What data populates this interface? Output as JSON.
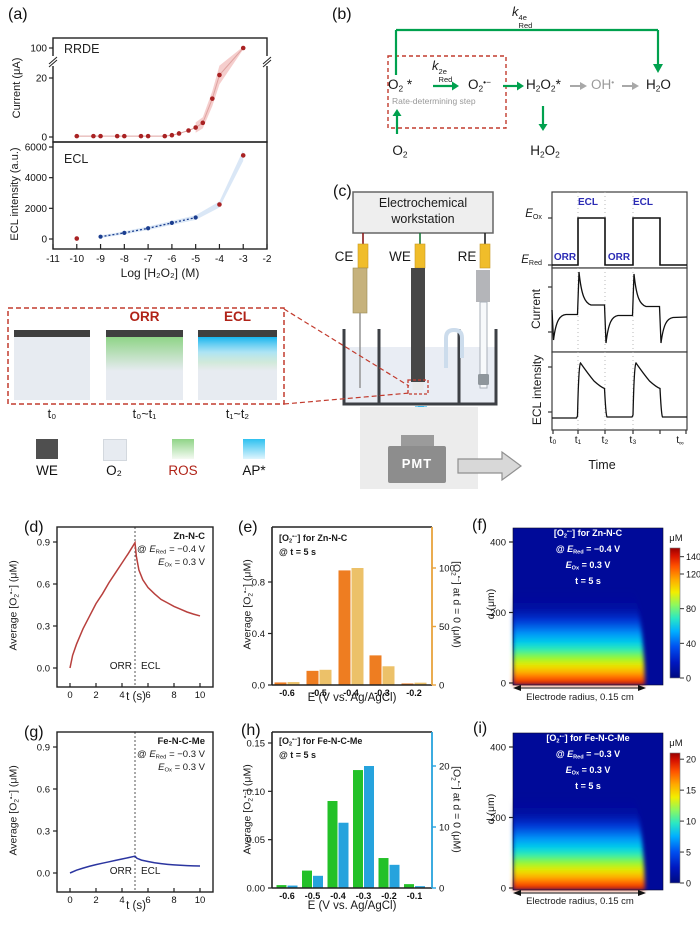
{
  "labels": {
    "a": "(a)",
    "b": "(b)",
    "c": "(c)",
    "d": "(d)",
    "e": "(e)",
    "f": "(f)",
    "g": "(g)",
    "h": "(h)",
    "i": "(i)"
  },
  "colors": {
    "accent_red": "#a92223",
    "navy": "#1b3d8f",
    "green_arrow": "#00a14e",
    "gray_arrow": "#a8a8a8",
    "dash_red": "#c23b2e",
    "blue_label": "#2b2bb5",
    "heat_bg": "#000a99",
    "glow_blue": "#58c6f3",
    "liquid": "#e9edf4",
    "electrode_dark": "#474747",
    "ce_tan": "#c6b27c",
    "re_gray": "#b4b5b9",
    "connector_yellow": "#f0bd2a",
    "orange_bar": "#ee7d21",
    "tan_bar": "#ecc169",
    "green_bar": "#23c128",
    "blue_bar": "#26a3dd",
    "right_axis_e": "#e8a33d"
  },
  "panel_b": {
    "k4e": [
      [
        "i",
        "k"
      ],
      [
        "st",
        [
          "4e",
          "Red"
        ]
      ]
    ],
    "k2e": [
      [
        "i",
        "k"
      ],
      [
        "st",
        [
          "2e",
          "Red"
        ]
      ]
    ],
    "o2_star": [
      [
        "t",
        "O"
      ],
      [
        "b",
        "2"
      ],
      [
        "t",
        " *"
      ]
    ],
    "o2_rad": [
      [
        "t",
        "O"
      ],
      [
        "b",
        "2"
      ],
      [
        "p",
        "•−"
      ]
    ],
    "h2o2_star": [
      [
        "t",
        "H"
      ],
      [
        "b",
        "2"
      ],
      [
        "t",
        "O"
      ],
      [
        "b",
        "2"
      ],
      [
        "t",
        "*"
      ]
    ],
    "oh_rad": [
      [
        "t",
        "OH"
      ],
      [
        "p",
        "•"
      ]
    ],
    "h2o": [
      [
        "t",
        "H"
      ],
      [
        "b",
        "2"
      ],
      [
        "t",
        "O"
      ]
    ],
    "o2": [
      [
        "t",
        "O"
      ],
      [
        "b",
        "2"
      ]
    ],
    "h2o2": [
      [
        "t",
        "H"
      ],
      [
        "b",
        "2"
      ],
      [
        "t",
        "O"
      ],
      [
        "b",
        "2"
      ]
    ],
    "rate_step": "Rate-determining step"
  },
  "panel_c": {
    "workstation_line1": "Electrochemical",
    "workstation_line2": "workstation",
    "ce": "CE",
    "we": "WE",
    "re": "RE",
    "pmt": "PMT",
    "eox": [
      [
        "i",
        "E"
      ],
      [
        "b",
        "Ox"
      ]
    ],
    "ered": [
      [
        "i",
        "E"
      ],
      [
        "b",
        "Red"
      ]
    ],
    "ecl1": "ECL",
    "ecl2": "ECL",
    "orr1": "ORR",
    "orr2": "ORR",
    "current_label": "Current",
    "ecl_intensity_label": "ECL intensity",
    "time_label": "Time",
    "t0": "t₀",
    "t1": "t₁",
    "t2": "t₂",
    "t3": "t₃",
    "t_inf": [
      [
        "t",
        "t"
      ],
      [
        "b",
        "∞"
      ]
    ]
  },
  "inset": {
    "orr": "ORR",
    "ecl": "ECL",
    "t0": "t₀",
    "t01": "t₀~t₁",
    "t12": "t₁~t₂",
    "legend": [
      {
        "label": "WE",
        "type": "solid",
        "colors": [
          "#4f4f4f"
        ],
        "label_color": "#111111"
      },
      {
        "label": "O₂",
        "type": "solid",
        "colors": [
          "#e7ebf1"
        ],
        "label_color": "#111111"
      },
      {
        "label": "ROS",
        "type": "gradient",
        "colors": [
          "#8fd487",
          "#f4faf2"
        ],
        "label_color": "#b02318"
      },
      {
        "label": "AP*",
        "type": "gradient",
        "colors": [
          "#2ec1f0",
          "#dff5fd"
        ],
        "label_color": "#111111"
      }
    ]
  },
  "chart_data": {
    "panel_a": {
      "type": "scatter",
      "xlabel": "Log [H₂O₂] (M)",
      "xticks": [
        -11,
        -10,
        -9,
        -8,
        -7,
        -6,
        -5,
        -4,
        -3,
        -2
      ],
      "top": {
        "label": "RRDE",
        "ylabel": "Current (μA)",
        "yticks": [
          0,
          20,
          100
        ],
        "axis_break_between": [
          20,
          100
        ],
        "x": [
          -10,
          -9.3,
          -9,
          -8.3,
          -8,
          -7.3,
          -7,
          -6.3,
          -6,
          -5.7,
          -5.3,
          -5,
          -4.7,
          -4.3,
          -4,
          -3
        ],
        "y": [
          0.3,
          0.3,
          0.3,
          0.3,
          0.3,
          0.3,
          0.3,
          0.3,
          0.6,
          1.2,
          2.2,
          3.2,
          4.8,
          13,
          21,
          100
        ],
        "point_color": "#a92223",
        "band_color": "#f3c6c4"
      },
      "bottom": {
        "label": "ECL",
        "ylabel": "ECL intensity (a.u.)",
        "yticks": [
          0,
          2000,
          4000,
          6000
        ],
        "red_x": [
          -10,
          -4,
          -3
        ],
        "red_y": [
          30,
          2250,
          5450
        ],
        "blue_x": [
          -9,
          -8,
          -7,
          -6,
          -5
        ],
        "blue_y": [
          150,
          400,
          700,
          1050,
          1400
        ],
        "red_color": "#a92223",
        "blue_color": "#1b3d8f",
        "band_color": "#d3e3f4"
      }
    },
    "panel_d": {
      "type": "line",
      "name": "Zn-N-C",
      "cond1": [
        [
          "t",
          "@ "
        ],
        [
          "i",
          "E"
        ],
        [
          "b",
          "Red"
        ],
        [
          "t",
          " = −0.4 V"
        ]
      ],
      "cond2": [
        [
          "i",
          "E"
        ],
        [
          "b",
          "Ox"
        ],
        [
          "t",
          " = 0.3 V"
        ]
      ],
      "region_left": "ORR",
      "region_right": "ECL",
      "xlabel": "t (s)",
      "ylabel_rich": [
        [
          "t",
          "Average [O"
        ],
        [
          "b",
          "2"
        ],
        [
          "p",
          "•−"
        ],
        [
          "t",
          "] (μM)"
        ]
      ],
      "xticks": [
        0,
        2,
        4,
        6,
        8,
        10
      ],
      "yticks": [
        "0.0",
        "0.3",
        "0.6",
        "0.9"
      ],
      "ytick_vals": [
        0,
        0.3,
        0.6,
        0.9
      ],
      "switch_t": 5,
      "color": "#b8403d",
      "points": [
        [
          0,
          0
        ],
        [
          0.2,
          0.09
        ],
        [
          0.5,
          0.17
        ],
        [
          1,
          0.28
        ],
        [
          1.5,
          0.37
        ],
        [
          2,
          0.46
        ],
        [
          2.5,
          0.53
        ],
        [
          3,
          0.61
        ],
        [
          3.5,
          0.68
        ],
        [
          4,
          0.75
        ],
        [
          4.5,
          0.82
        ],
        [
          5,
          0.895
        ],
        [
          5.1,
          0.8
        ],
        [
          5.3,
          0.7
        ],
        [
          5.6,
          0.63
        ],
        [
          6,
          0.575
        ],
        [
          6.5,
          0.53
        ],
        [
          7,
          0.49
        ],
        [
          7.5,
          0.465
        ],
        [
          8,
          0.44
        ],
        [
          8.5,
          0.42
        ],
        [
          9,
          0.4
        ],
        [
          9.5,
          0.385
        ],
        [
          10,
          0.372
        ]
      ]
    },
    "panel_g": {
      "type": "line",
      "name": "Fe-N-C-Me",
      "cond1": [
        [
          "t",
          "@ "
        ],
        [
          "i",
          "E"
        ],
        [
          "b",
          "Red"
        ],
        [
          "t",
          " = −0.3 V"
        ]
      ],
      "cond2": [
        [
          "i",
          "E"
        ],
        [
          "b",
          "Ox"
        ],
        [
          "t",
          " = 0.3 V"
        ]
      ],
      "region_left": "ORR",
      "region_right": "ECL",
      "xlabel": "t (s)",
      "ylabel_rich": [
        [
          "t",
          "Average [O"
        ],
        [
          "b",
          "2"
        ],
        [
          "p",
          "•−"
        ],
        [
          "t",
          "] (μM)"
        ]
      ],
      "xticks": [
        0,
        2,
        4,
        6,
        8,
        10
      ],
      "yticks": [
        "0.0",
        "0.3",
        "0.6",
        "0.9"
      ],
      "ytick_vals": [
        0,
        0.3,
        0.6,
        0.9
      ],
      "switch_t": 5,
      "color": "#2b35a0",
      "points": [
        [
          0,
          0
        ],
        [
          0.5,
          0.02
        ],
        [
          1,
          0.035
        ],
        [
          1.5,
          0.048
        ],
        [
          2,
          0.06
        ],
        [
          2.5,
          0.07
        ],
        [
          3,
          0.08
        ],
        [
          3.5,
          0.09
        ],
        [
          4,
          0.1
        ],
        [
          4.5,
          0.11
        ],
        [
          5,
          0.12
        ],
        [
          5.15,
          0.105
        ],
        [
          5.5,
          0.092
        ],
        [
          6,
          0.082
        ],
        [
          6.5,
          0.073
        ],
        [
          7,
          0.067
        ],
        [
          7.5,
          0.062
        ],
        [
          8,
          0.058
        ],
        [
          8.5,
          0.055
        ],
        [
          9,
          0.053
        ],
        [
          9.5,
          0.051
        ],
        [
          10,
          0.05
        ]
      ]
    },
    "panel_e": {
      "type": "bar",
      "title": [
        [
          "t",
          "[O"
        ],
        [
          "b",
          "2"
        ],
        [
          "p",
          "•−"
        ],
        [
          "t",
          "] for Zn-N-C"
        ]
      ],
      "subtitle": "@ t = 5 s",
      "categories": [
        "-0.6",
        "-0.5",
        "-0.4",
        "-0.3",
        "-0.2"
      ],
      "series": [
        {
          "name": "average",
          "axis": "left",
          "color": "#ee7d21",
          "values": [
            0.02,
            0.11,
            0.89,
            0.23,
            0.012
          ]
        },
        {
          "name": "at_d_0",
          "axis": "right",
          "color": "#ecc169",
          "values": [
            2.5,
            13,
            100,
            16,
            2
          ]
        }
      ],
      "left_ylabel_rich": [
        [
          "t",
          "Average [O"
        ],
        [
          "b",
          "2"
        ],
        [
          "p",
          "•−"
        ],
        [
          "t",
          "] (μM)"
        ]
      ],
      "right_ylabel_rich": [
        [
          "t",
          "[O"
        ],
        [
          "b",
          "2"
        ],
        [
          "p",
          "•−"
        ],
        [
          "t",
          "] at d = 0 (μM)"
        ]
      ],
      "left_ticks": [
        "0.0",
        "0.4",
        "0.8"
      ],
      "left_tick_vals": [
        0,
        0.4,
        0.8
      ],
      "right_ticks": [
        "0",
        "50",
        "100"
      ],
      "right_tick_vals": [
        0,
        50,
        100
      ],
      "right_axis_color": "#e8a33d",
      "xlabel": "E (V vs. Ag/AgCl)"
    },
    "panel_h": {
      "type": "bar",
      "title": [
        [
          "t",
          "[O"
        ],
        [
          "b",
          "2"
        ],
        [
          "p",
          "•−"
        ],
        [
          "t",
          "] for Fe-N-C-Me"
        ]
      ],
      "subtitle": "@ t = 5 s",
      "categories": [
        "-0.6",
        "-0.5",
        "-0.4",
        "-0.3",
        "-0.2",
        "-0.1"
      ],
      "series": [
        {
          "name": "average",
          "axis": "left",
          "color": "#23c128",
          "values": [
            0.003,
            0.018,
            0.09,
            0.122,
            0.031,
            0.004
          ]
        },
        {
          "name": "at_d_0",
          "axis": "right",
          "color": "#26a3dd",
          "values": [
            0.4,
            2,
            10.7,
            20,
            3.8,
            0.3
          ]
        }
      ],
      "left_ylabel_rich": [
        [
          "t",
          "Average [O"
        ],
        [
          "b",
          "2"
        ],
        [
          "p",
          "•−"
        ],
        [
          "t",
          "] (μM)"
        ]
      ],
      "right_ylabel_rich": [
        [
          "t",
          "[O"
        ],
        [
          "b",
          "2"
        ],
        [
          "p",
          "•−"
        ],
        [
          "t",
          "] at d = 0 (μM)"
        ]
      ],
      "left_ticks": [
        "0.00",
        "0.05",
        "0.10",
        "0.15"
      ],
      "left_tick_vals": [
        0,
        0.05,
        0.1,
        0.15
      ],
      "right_ticks": [
        "0",
        "10",
        "20"
      ],
      "right_tick_vals": [
        0,
        10,
        20
      ],
      "right_axis_color": "#26a3dd",
      "xlabel": "E (V vs. Ag/AgCl)"
    },
    "panel_f": {
      "type": "heatmap",
      "title_lines": [
        [
          [
            "t",
            "[O"
          ],
          [
            "b",
            "2"
          ],
          [
            "p",
            "•−"
          ],
          [
            "t",
            "] for Zn-N-C"
          ]
        ],
        [
          [
            "t",
            "@ "
          ],
          [
            "i",
            "E"
          ],
          [
            "b",
            "Red"
          ],
          [
            "t",
            " = −0.4 V"
          ]
        ],
        [
          [
            "i",
            "E"
          ],
          [
            "b",
            "Ox"
          ],
          [
            "t",
            " = 0.3 V"
          ]
        ],
        [
          [
            "t",
            "t = 5 s"
          ]
        ]
      ],
      "ylabel": "d (μm)",
      "yticks": [
        "0",
        "200",
        "400"
      ],
      "ytick_vals": [
        0,
        200,
        400
      ],
      "y_range_um": [
        0,
        400
      ],
      "colorbar": {
        "unit": "μM",
        "ticks": [
          0,
          40,
          80,
          120,
          140
        ],
        "max": 150
      },
      "xlabel": "Electrode radius, 0.15 cm",
      "bg": "#000a99"
    },
    "panel_i": {
      "type": "heatmap",
      "title_lines": [
        [
          [
            "t",
            "[O"
          ],
          [
            "b",
            "2"
          ],
          [
            "p",
            "•−"
          ],
          [
            "t",
            "] for Fe-N-C-Me"
          ]
        ],
        [
          [
            "t",
            "@ "
          ],
          [
            "i",
            "E"
          ],
          [
            "b",
            "Red"
          ],
          [
            "t",
            " = −0.3 V"
          ]
        ],
        [
          [
            "i",
            "E"
          ],
          [
            "b",
            "Ox"
          ],
          [
            "t",
            " = 0.3 V"
          ]
        ],
        [
          [
            "t",
            "t = 5 s"
          ]
        ]
      ],
      "ylabel": "d (μm)",
      "yticks": [
        "0",
        "200",
        "400"
      ],
      "ytick_vals": [
        0,
        200,
        400
      ],
      "y_range_um": [
        0,
        400
      ],
      "colorbar": {
        "unit": "μM",
        "ticks": [
          0,
          5,
          10,
          15,
          20
        ],
        "max": 21
      },
      "xlabel": "Electrode radius, 0.15 cm",
      "bg": "#000a99"
    }
  }
}
